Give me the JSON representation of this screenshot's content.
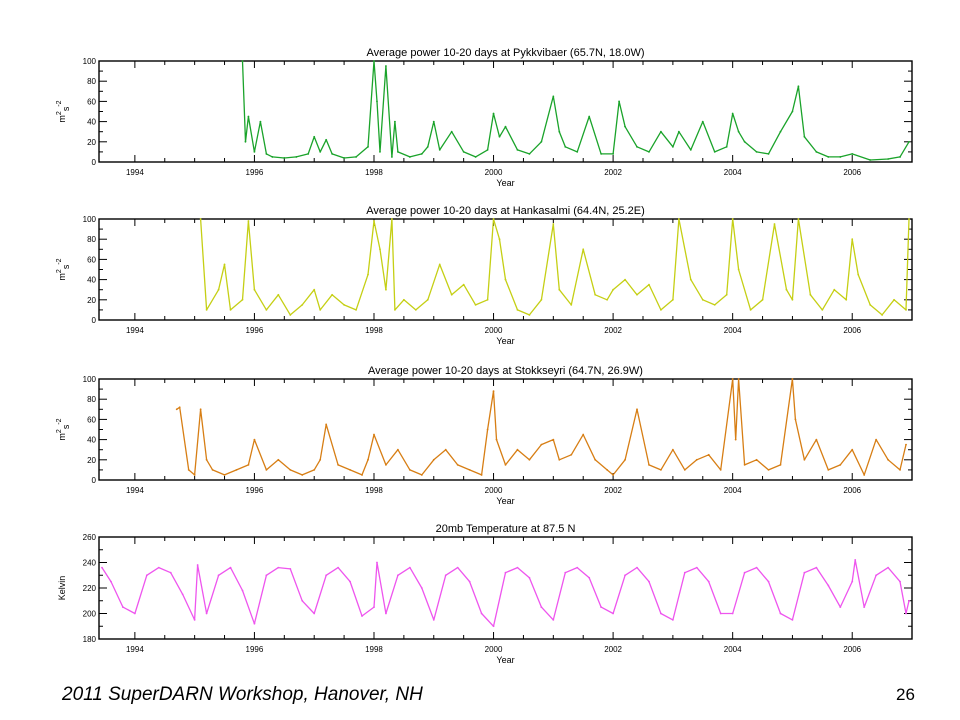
{
  "footer": {
    "left": "2011 SuperDARN Workshop, Hanover, NH",
    "page_number": "26"
  },
  "chart_data": [
    {
      "type": "line",
      "title": "Average power 10-20 days at Pykkvibaer (65.7N, 18.0W)",
      "xlabel": "Year",
      "ylabel": "m2s-2",
      "ylabel_main": "m",
      "ylabel_sup1": "2",
      "ylabel_mid": "s",
      "ylabel_sup2": "-2",
      "color": "#1aa32a",
      "xlim": [
        1993.4,
        2007.0
      ],
      "ylim": [
        0,
        100
      ],
      "xticks": [
        "1994",
        "1996",
        "1998",
        "2000",
        "2002",
        "2004",
        "2006"
      ],
      "yticks": [
        "0",
        "20",
        "40",
        "60",
        "80",
        "100"
      ],
      "grid": false,
      "series": [
        {
          "x": [
            1995.8,
            1995.85,
            1995.9,
            1996.0,
            1996.1,
            1996.2,
            1996.3,
            1996.5,
            1996.7,
            1996.9,
            1997.0,
            1997.1,
            1997.2,
            1997.3,
            1997.5,
            1997.7,
            1997.9,
            1998.0,
            1998.05,
            1998.1,
            1998.2,
            1998.3,
            1998.35,
            1998.4,
            1998.6,
            1998.8,
            1998.9,
            1999.0,
            1999.1,
            1999.3,
            1999.5,
            1999.7,
            1999.9,
            2000.0,
            2000.1,
            2000.2,
            2000.4,
            2000.6,
            2000.8,
            2001.0,
            2001.1,
            2001.2,
            2001.4,
            2001.6,
            2001.8,
            2002.0,
            2002.1,
            2002.2,
            2002.4,
            2002.6,
            2002.8,
            2003.0,
            2003.1,
            2003.3,
            2003.5,
            2003.7,
            2003.9,
            2004.0,
            2004.1,
            2004.2,
            2004.4,
            2004.6,
            2004.8,
            2005.0,
            2005.1,
            2005.2,
            2005.4,
            2005.6,
            2005.8,
            2006.0,
            2006.3,
            2006.6,
            2006.8,
            2006.95
          ],
          "y": [
            100,
            20,
            45,
            10,
            40,
            8,
            5,
            4,
            5,
            8,
            25,
            10,
            22,
            8,
            4,
            5,
            15,
            100,
            60,
            10,
            95,
            5,
            40,
            10,
            5,
            8,
            15,
            40,
            12,
            30,
            10,
            5,
            12,
            48,
            25,
            35,
            12,
            8,
            20,
            65,
            30,
            15,
            10,
            45,
            8,
            8,
            60,
            35,
            15,
            10,
            30,
            15,
            30,
            12,
            40,
            10,
            15,
            48,
            30,
            20,
            10,
            8,
            30,
            50,
            75,
            25,
            10,
            5,
            5,
            8,
            2,
            3,
            5,
            20
          ]
        }
      ]
    },
    {
      "type": "line",
      "title": "Average power 10-20 days at Hankasalmi (64.4N, 25.2E)",
      "xlabel": "Year",
      "ylabel": "m2s-2",
      "ylabel_main": "m",
      "ylabel_sup1": "2",
      "ylabel_mid": "s",
      "ylabel_sup2": "-2",
      "color": "#c5cf14",
      "xlim": [
        1993.4,
        2007.0
      ],
      "ylim": [
        0,
        100
      ],
      "xticks": [
        "1994",
        "1996",
        "1998",
        "2000",
        "2002",
        "2004",
        "2006"
      ],
      "yticks": [
        "0",
        "20",
        "40",
        "60",
        "80",
        "100"
      ],
      "grid": false,
      "series": [
        {
          "x": [
            1995.1,
            1995.2,
            1995.4,
            1995.5,
            1995.6,
            1995.8,
            1995.9,
            1996.0,
            1996.2,
            1996.4,
            1996.6,
            1996.8,
            1997.0,
            1997.1,
            1997.3,
            1997.5,
            1997.7,
            1997.9,
            1998.0,
            1998.1,
            1998.2,
            1998.3,
            1998.35,
            1998.5,
            1998.7,
            1998.9,
            1999.1,
            1999.3,
            1999.5,
            1999.7,
            1999.9,
            2000.0,
            2000.1,
            2000.2,
            2000.4,
            2000.6,
            2000.8,
            2001.0,
            2001.1,
            2001.3,
            2001.5,
            2001.7,
            2001.9,
            2002.0,
            2002.2,
            2002.4,
            2002.6,
            2002.8,
            2003.0,
            2003.1,
            2003.3,
            2003.5,
            2003.7,
            2003.9,
            2004.0,
            2004.1,
            2004.3,
            2004.5,
            2004.7,
            2004.9,
            2005.0,
            2005.1,
            2005.3,
            2005.5,
            2005.7,
            2005.9,
            2006.0,
            2006.1,
            2006.3,
            2006.5,
            2006.7,
            2006.9,
            2006.95
          ],
          "y": [
            100,
            10,
            30,
            55,
            10,
            20,
            98,
            30,
            10,
            25,
            5,
            15,
            30,
            10,
            25,
            15,
            10,
            45,
            98,
            70,
            30,
            100,
            10,
            20,
            10,
            20,
            55,
            25,
            35,
            15,
            20,
            100,
            80,
            40,
            10,
            5,
            20,
            95,
            30,
            15,
            70,
            25,
            20,
            30,
            40,
            25,
            35,
            10,
            20,
            100,
            40,
            20,
            15,
            25,
            100,
            50,
            10,
            20,
            95,
            30,
            20,
            100,
            25,
            10,
            30,
            20,
            80,
            45,
            15,
            5,
            20,
            10,
            100
          ]
        }
      ]
    },
    {
      "type": "line",
      "title": "Average power 10-20 days at Stokkseyri (64.7N, 26.9W)",
      "xlabel": "Year",
      "ylabel": "m2s-2",
      "ylabel_main": "m",
      "ylabel_sup1": "2",
      "ylabel_mid": "s",
      "ylabel_sup2": "-2",
      "color": "#d77e14",
      "xlim": [
        1993.4,
        2007.0
      ],
      "ylim": [
        0,
        100
      ],
      "xticks": [
        "1994",
        "1996",
        "1998",
        "2000",
        "2002",
        "2004",
        "2006"
      ],
      "yticks": [
        "0",
        "20",
        "40",
        "60",
        "80",
        "100"
      ],
      "grid": false,
      "series": [
        {
          "x": [
            1994.7,
            1994.75,
            1994.9,
            1995.0,
            1995.1,
            1995.2,
            1995.3,
            1995.5,
            1995.7,
            1995.9,
            1996.0,
            1996.2,
            1996.4,
            1996.6,
            1996.8,
            1997.0,
            1997.1,
            1997.2,
            1997.4,
            1997.6,
            1997.8,
            1997.9,
            1998.0,
            1998.2,
            1998.4,
            1998.6,
            1998.8,
            1999.0,
            1999.2,
            1999.4,
            1999.6,
            1999.8,
            1999.9,
            2000.0,
            2000.05,
            2000.2,
            2000.4,
            2000.6,
            2000.8,
            2001.0,
            2001.1,
            2001.3,
            2001.5,
            2001.7,
            2001.9,
            2002.0,
            2002.2,
            2002.4,
            2002.6,
            2002.8,
            2003.0,
            2003.2,
            2003.4,
            2003.6,
            2003.8,
            2004.0,
            2004.05,
            2004.1,
            2004.2,
            2004.4,
            2004.6,
            2004.8,
            2005.0,
            2005.05,
            2005.2,
            2005.4,
            2005.6,
            2005.8,
            2006.0,
            2006.2,
            2006.4,
            2006.6,
            2006.8,
            2006.9
          ],
          "y": [
            70,
            72,
            10,
            5,
            70,
            20,
            10,
            5,
            10,
            15,
            40,
            10,
            20,
            10,
            5,
            10,
            20,
            55,
            15,
            10,
            5,
            20,
            45,
            15,
            30,
            10,
            5,
            20,
            30,
            15,
            10,
            5,
            50,
            88,
            40,
            15,
            30,
            20,
            35,
            40,
            20,
            25,
            45,
            20,
            10,
            5,
            20,
            70,
            15,
            10,
            30,
            10,
            20,
            25,
            10,
            100,
            40,
            100,
            15,
            20,
            10,
            15,
            100,
            60,
            20,
            40,
            10,
            15,
            30,
            5,
            40,
            20,
            10,
            35
          ]
        }
      ]
    },
    {
      "type": "line",
      "title": "20mb Temperature at 87.5 N",
      "xlabel": "Year",
      "ylabel": "Kelvin",
      "color": "#ee55ee",
      "xlim": [
        1993.4,
        2007.0
      ],
      "ylim": [
        180,
        260
      ],
      "xticks": [
        "1994",
        "1996",
        "1998",
        "2000",
        "2002",
        "2004",
        "2006"
      ],
      "yticks": [
        "180",
        "200",
        "220",
        "240",
        "260"
      ],
      "grid": false,
      "series": [
        {
          "x": [
            1993.45,
            1993.6,
            1993.8,
            1994.0,
            1994.2,
            1994.4,
            1994.6,
            1994.8,
            1995.0,
            1995.05,
            1995.2,
            1995.4,
            1995.6,
            1995.8,
            1996.0,
            1996.2,
            1996.4,
            1996.6,
            1996.8,
            1997.0,
            1997.2,
            1997.4,
            1997.6,
            1997.8,
            1998.0,
            1998.05,
            1998.2,
            1998.4,
            1998.6,
            1998.8,
            1999.0,
            1999.2,
            1999.4,
            1999.6,
            1999.8,
            2000.0,
            2000.2,
            2000.4,
            2000.6,
            2000.8,
            2001.0,
            2001.2,
            2001.4,
            2001.6,
            2001.8,
            2002.0,
            2002.2,
            2002.4,
            2002.6,
            2002.8,
            2003.0,
            2003.2,
            2003.4,
            2003.6,
            2003.8,
            2004.0,
            2004.2,
            2004.4,
            2004.6,
            2004.8,
            2005.0,
            2005.2,
            2005.4,
            2005.6,
            2005.8,
            2006.0,
            2006.05,
            2006.2,
            2006.4,
            2006.6,
            2006.8,
            2006.9,
            2006.95
          ],
          "y": [
            236,
            225,
            205,
            200,
            230,
            236,
            232,
            215,
            195,
            238,
            200,
            230,
            236,
            218,
            192,
            230,
            236,
            235,
            210,
            200,
            230,
            236,
            225,
            198,
            205,
            240,
            200,
            230,
            236,
            220,
            195,
            230,
            236,
            225,
            200,
            190,
            232,
            236,
            228,
            205,
            195,
            232,
            236,
            228,
            205,
            200,
            230,
            236,
            225,
            200,
            195,
            232,
            236,
            225,
            200,
            200,
            232,
            236,
            225,
            200,
            195,
            232,
            236,
            222,
            205,
            225,
            242,
            205,
            230,
            236,
            225,
            200,
            210
          ]
        }
      ]
    }
  ]
}
